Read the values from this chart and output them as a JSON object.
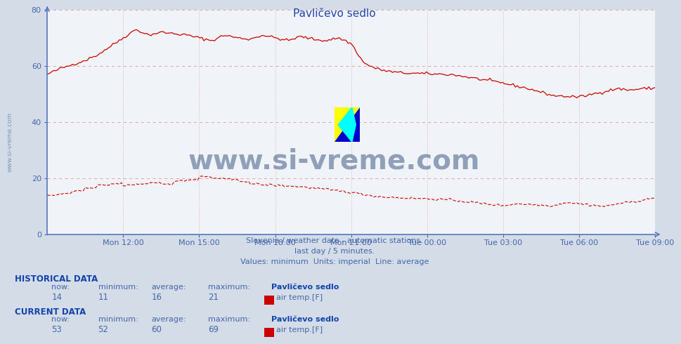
{
  "title": "Pavličevo sedlo",
  "background_color": "#d4dce8",
  "plot_bg_color": "#f0f4f8",
  "line_color": "#cc0000",
  "yticks": [
    0,
    20,
    40,
    60,
    80
  ],
  "ylim": [
    0,
    80
  ],
  "tick_color": "#4466aa",
  "title_color": "#2244aa",
  "text_color": "#4466aa",
  "footer_line1": "Slovenia / weather data - automatic stations.",
  "footer_line2": "last day / 5 minutes.",
  "footer_line3": "Values: minimum  Units: imperial  Line: average",
  "hist_label": "HISTORICAL DATA",
  "hist_now": "14",
  "hist_min": "11",
  "hist_avg": "16",
  "hist_max": "21",
  "curr_label": "CURRENT DATA",
  "curr_now": "53",
  "curr_min": "52",
  "curr_avg": "60",
  "curr_max": "69",
  "station_name": "Pavličevo sedlo",
  "data_label": "air temp.[F]",
  "watermark": "www.si-vreme.com",
  "watermark_color": "#1a3a6a",
  "side_text": "www.si-vreme.com",
  "n_points": 288,
  "xtick_positions": [
    3,
    6,
    9,
    12,
    15,
    18,
    21,
    24
  ],
  "xtick_labels": [
    "Mon 12:00",
    "Mon 15:00",
    "Mon 18:00",
    "Mon 21:00",
    "Tue 00:00",
    "Tue 03:00",
    "Tue 06:00",
    "Tue 09:00"
  ]
}
